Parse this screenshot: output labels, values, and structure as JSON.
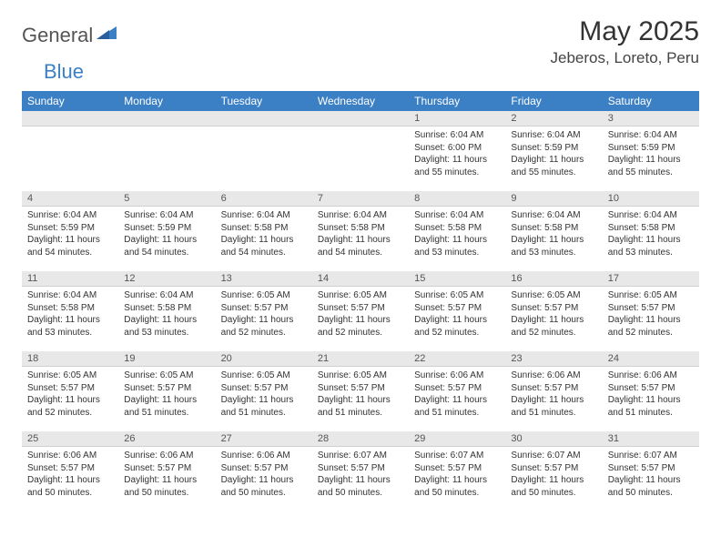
{
  "logo": {
    "text_general": "General",
    "text_blue": "Blue"
  },
  "header": {
    "month_title": "May 2025",
    "location": "Jeberos, Loreto, Peru"
  },
  "colors": {
    "header_bar": "#3b7fc4",
    "day_number_bg": "#e8e8e8",
    "text": "#333333",
    "white": "#ffffff"
  },
  "weekdays": [
    "Sunday",
    "Monday",
    "Tuesday",
    "Wednesday",
    "Thursday",
    "Friday",
    "Saturday"
  ],
  "weeks": [
    [
      {
        "day": "",
        "sunrise": "",
        "sunset": "",
        "daylight": ""
      },
      {
        "day": "",
        "sunrise": "",
        "sunset": "",
        "daylight": ""
      },
      {
        "day": "",
        "sunrise": "",
        "sunset": "",
        "daylight": ""
      },
      {
        "day": "",
        "sunrise": "",
        "sunset": "",
        "daylight": ""
      },
      {
        "day": "1",
        "sunrise": "Sunrise: 6:04 AM",
        "sunset": "Sunset: 6:00 PM",
        "daylight": "Daylight: 11 hours and 55 minutes."
      },
      {
        "day": "2",
        "sunrise": "Sunrise: 6:04 AM",
        "sunset": "Sunset: 5:59 PM",
        "daylight": "Daylight: 11 hours and 55 minutes."
      },
      {
        "day": "3",
        "sunrise": "Sunrise: 6:04 AM",
        "sunset": "Sunset: 5:59 PM",
        "daylight": "Daylight: 11 hours and 55 minutes."
      }
    ],
    [
      {
        "day": "4",
        "sunrise": "Sunrise: 6:04 AM",
        "sunset": "Sunset: 5:59 PM",
        "daylight": "Daylight: 11 hours and 54 minutes."
      },
      {
        "day": "5",
        "sunrise": "Sunrise: 6:04 AM",
        "sunset": "Sunset: 5:59 PM",
        "daylight": "Daylight: 11 hours and 54 minutes."
      },
      {
        "day": "6",
        "sunrise": "Sunrise: 6:04 AM",
        "sunset": "Sunset: 5:58 PM",
        "daylight": "Daylight: 11 hours and 54 minutes."
      },
      {
        "day": "7",
        "sunrise": "Sunrise: 6:04 AM",
        "sunset": "Sunset: 5:58 PM",
        "daylight": "Daylight: 11 hours and 54 minutes."
      },
      {
        "day": "8",
        "sunrise": "Sunrise: 6:04 AM",
        "sunset": "Sunset: 5:58 PM",
        "daylight": "Daylight: 11 hours and 53 minutes."
      },
      {
        "day": "9",
        "sunrise": "Sunrise: 6:04 AM",
        "sunset": "Sunset: 5:58 PM",
        "daylight": "Daylight: 11 hours and 53 minutes."
      },
      {
        "day": "10",
        "sunrise": "Sunrise: 6:04 AM",
        "sunset": "Sunset: 5:58 PM",
        "daylight": "Daylight: 11 hours and 53 minutes."
      }
    ],
    [
      {
        "day": "11",
        "sunrise": "Sunrise: 6:04 AM",
        "sunset": "Sunset: 5:58 PM",
        "daylight": "Daylight: 11 hours and 53 minutes."
      },
      {
        "day": "12",
        "sunrise": "Sunrise: 6:04 AM",
        "sunset": "Sunset: 5:58 PM",
        "daylight": "Daylight: 11 hours and 53 minutes."
      },
      {
        "day": "13",
        "sunrise": "Sunrise: 6:05 AM",
        "sunset": "Sunset: 5:57 PM",
        "daylight": "Daylight: 11 hours and 52 minutes."
      },
      {
        "day": "14",
        "sunrise": "Sunrise: 6:05 AM",
        "sunset": "Sunset: 5:57 PM",
        "daylight": "Daylight: 11 hours and 52 minutes."
      },
      {
        "day": "15",
        "sunrise": "Sunrise: 6:05 AM",
        "sunset": "Sunset: 5:57 PM",
        "daylight": "Daylight: 11 hours and 52 minutes."
      },
      {
        "day": "16",
        "sunrise": "Sunrise: 6:05 AM",
        "sunset": "Sunset: 5:57 PM",
        "daylight": "Daylight: 11 hours and 52 minutes."
      },
      {
        "day": "17",
        "sunrise": "Sunrise: 6:05 AM",
        "sunset": "Sunset: 5:57 PM",
        "daylight": "Daylight: 11 hours and 52 minutes."
      }
    ],
    [
      {
        "day": "18",
        "sunrise": "Sunrise: 6:05 AM",
        "sunset": "Sunset: 5:57 PM",
        "daylight": "Daylight: 11 hours and 52 minutes."
      },
      {
        "day": "19",
        "sunrise": "Sunrise: 6:05 AM",
        "sunset": "Sunset: 5:57 PM",
        "daylight": "Daylight: 11 hours and 51 minutes."
      },
      {
        "day": "20",
        "sunrise": "Sunrise: 6:05 AM",
        "sunset": "Sunset: 5:57 PM",
        "daylight": "Daylight: 11 hours and 51 minutes."
      },
      {
        "day": "21",
        "sunrise": "Sunrise: 6:05 AM",
        "sunset": "Sunset: 5:57 PM",
        "daylight": "Daylight: 11 hours and 51 minutes."
      },
      {
        "day": "22",
        "sunrise": "Sunrise: 6:06 AM",
        "sunset": "Sunset: 5:57 PM",
        "daylight": "Daylight: 11 hours and 51 minutes."
      },
      {
        "day": "23",
        "sunrise": "Sunrise: 6:06 AM",
        "sunset": "Sunset: 5:57 PM",
        "daylight": "Daylight: 11 hours and 51 minutes."
      },
      {
        "day": "24",
        "sunrise": "Sunrise: 6:06 AM",
        "sunset": "Sunset: 5:57 PM",
        "daylight": "Daylight: 11 hours and 51 minutes."
      }
    ],
    [
      {
        "day": "25",
        "sunrise": "Sunrise: 6:06 AM",
        "sunset": "Sunset: 5:57 PM",
        "daylight": "Daylight: 11 hours and 50 minutes."
      },
      {
        "day": "26",
        "sunrise": "Sunrise: 6:06 AM",
        "sunset": "Sunset: 5:57 PM",
        "daylight": "Daylight: 11 hours and 50 minutes."
      },
      {
        "day": "27",
        "sunrise": "Sunrise: 6:06 AM",
        "sunset": "Sunset: 5:57 PM",
        "daylight": "Daylight: 11 hours and 50 minutes."
      },
      {
        "day": "28",
        "sunrise": "Sunrise: 6:07 AM",
        "sunset": "Sunset: 5:57 PM",
        "daylight": "Daylight: 11 hours and 50 minutes."
      },
      {
        "day": "29",
        "sunrise": "Sunrise: 6:07 AM",
        "sunset": "Sunset: 5:57 PM",
        "daylight": "Daylight: 11 hours and 50 minutes."
      },
      {
        "day": "30",
        "sunrise": "Sunrise: 6:07 AM",
        "sunset": "Sunset: 5:57 PM",
        "daylight": "Daylight: 11 hours and 50 minutes."
      },
      {
        "day": "31",
        "sunrise": "Sunrise: 6:07 AM",
        "sunset": "Sunset: 5:57 PM",
        "daylight": "Daylight: 11 hours and 50 minutes."
      }
    ]
  ]
}
